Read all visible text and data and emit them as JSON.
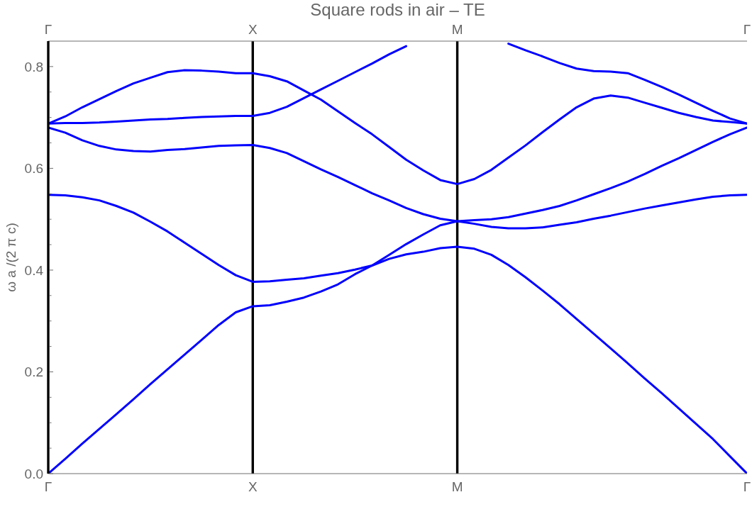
{
  "chart_data": {
    "type": "line",
    "title": "Square rods in air – TE",
    "ylabel": "ω a /(2 π c)",
    "categories": [
      "Γ",
      null,
      null,
      null,
      null,
      null,
      null,
      null,
      null,
      null,
      null,
      null,
      "X",
      null,
      null,
      null,
      null,
      null,
      null,
      null,
      null,
      null,
      null,
      null,
      "M",
      null,
      null,
      null,
      null,
      null,
      null,
      null,
      null,
      null,
      null,
      null,
      null,
      null,
      null,
      null,
      null,
      "Γ"
    ],
    "ylim": [
      0,
      0.85
    ],
    "yticks": [
      {
        "value": 0,
        "label": "0.0"
      },
      {
        "value": 0.05,
        "label": null
      },
      {
        "value": 0.1,
        "label": null
      },
      {
        "value": 0.15,
        "label": null
      },
      0.2,
      {
        "value": 0.25,
        "label": null
      },
      {
        "value": 0.3,
        "label": null
      },
      {
        "value": 0.35,
        "label": null
      },
      0.4,
      {
        "value": 0.45,
        "label": null
      },
      {
        "value": 0.5,
        "label": null
      },
      {
        "value": 0.55,
        "label": null
      },
      0.6,
      {
        "value": 0.65,
        "label": null
      },
      {
        "value": 0.7,
        "label": null
      },
      {
        "value": 0.75,
        "label": null
      },
      0.8
    ],
    "marker": "none",
    "ref_lines": [
      {
        "axis": "x",
        "value": "X",
        "color": "#000000"
      },
      {
        "axis": "x",
        "value": "M",
        "color": "#000000"
      }
    ],
    "series": [
      {
        "color": "#0000ff",
        "values": [
          0,
          0.029,
          0.059,
          0.088,
          0.117,
          0.146,
          0.176,
          0.205,
          0.234,
          0.263,
          0.292,
          0.317,
          0.329,
          0.331,
          0.338,
          0.346,
          0.358,
          0.372,
          0.392,
          0.409,
          0.422,
          0.431,
          0.436,
          0.443,
          0.446,
          0.442,
          0.43,
          0.41,
          0.386,
          0.36,
          0.333,
          0.304,
          0.275,
          0.246,
          0.217,
          0.187,
          0.158,
          0.128,
          0.098,
          0.068,
          0.034,
          0
        ]
      },
      {
        "color": "#0000ff",
        "values": [
          0.548,
          0.547,
          0.543,
          0.537,
          0.526,
          0.513,
          0.495,
          0.476,
          0.454,
          0.432,
          0.41,
          0.39,
          0.377,
          0.378,
          0.381,
          0.384,
          0.389,
          0.394,
          0.401,
          0.409,
          0.43,
          0.451,
          0.47,
          0.488,
          0.496,
          0.491,
          0.485,
          0.482,
          0.482,
          0.484,
          0.489,
          0.494,
          0.501,
          0.507,
          0.514,
          0.521,
          0.527,
          0.533,
          0.539,
          0.544,
          0.547,
          0.548
        ]
      },
      {
        "color": "#0000ff",
        "values": [
          0.68,
          0.67,
          0.655,
          0.644,
          0.637,
          0.634,
          0.633,
          0.636,
          0.638,
          0.641,
          0.644,
          0.645,
          0.646,
          0.64,
          0.63,
          0.614,
          0.598,
          0.583,
          0.567,
          0.551,
          0.537,
          0.522,
          0.51,
          0.501,
          0.496,
          0.498,
          0.5,
          0.504,
          0.511,
          0.518,
          0.526,
          0.537,
          0.549,
          0.561,
          0.574,
          0.589,
          0.605,
          0.62,
          0.636,
          0.652,
          0.667,
          0.68
        ]
      },
      {
        "color": "#0000ff",
        "values": [
          0.688,
          0.689,
          0.689,
          0.69,
          0.692,
          0.694,
          0.696,
          0.697,
          0.699,
          0.701,
          0.702,
          0.703,
          0.703,
          0.709,
          0.721,
          0.738,
          0.755,
          0.772,
          0.789,
          0.806,
          0.824,
          0.84,
          null,
          null,
          null,
          null,
          null,
          0.845,
          0.832,
          0.82,
          0.807,
          0.796,
          0.791,
          0.79,
          0.787,
          0.774,
          0.76,
          0.745,
          0.729,
          0.713,
          0.698,
          0.688
        ]
      },
      {
        "color": "#0000ff",
        "values": [
          0.688,
          0.702,
          0.72,
          0.736,
          0.752,
          0.767,
          0.778,
          0.789,
          0.793,
          0.792,
          0.79,
          0.787,
          0.787,
          0.781,
          0.771,
          0.753,
          0.735,
          0.712,
          0.689,
          0.667,
          0.642,
          0.617,
          0.596,
          0.577,
          0.569,
          0.579,
          0.597,
          0.621,
          0.645,
          0.671,
          0.696,
          0.72,
          0.737,
          0.743,
          0.739,
          0.729,
          0.719,
          0.709,
          0.701,
          0.694,
          0.691,
          0.688
        ]
      }
    ]
  }
}
